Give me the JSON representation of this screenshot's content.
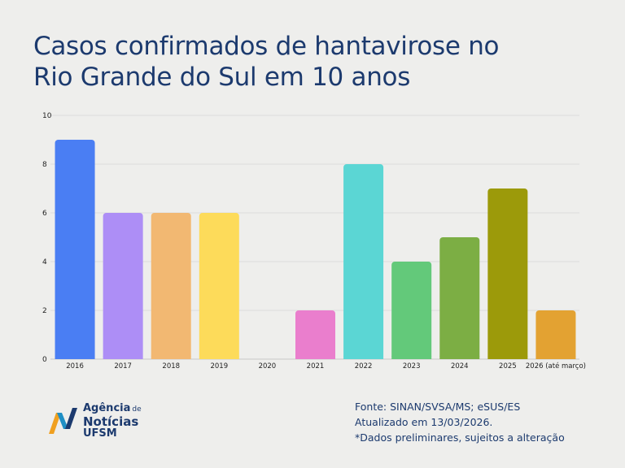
{
  "header": {
    "title_line1": "Casos confirmados de hantavirose no",
    "title_line2": "Rio Grande do Sul em 10 anos"
  },
  "chart_data": {
    "type": "bar",
    "title": "Casos confirmados de hantavirose no Rio Grande do Sul em 10 anos",
    "categories": [
      "2016",
      "2017",
      "2018",
      "2019",
      "2020",
      "2021",
      "2022",
      "2023",
      "2024",
      "2025",
      "2026 (até março)"
    ],
    "values": [
      9,
      6,
      6,
      6,
      0,
      2,
      8,
      4,
      5,
      7,
      2
    ],
    "colors": [
      "#4a7ef3",
      "#ad8ef6",
      "#f2b872",
      "#fddb5a",
      "#cccccc",
      "#ea7ecd",
      "#5bd6d4",
      "#63c97a",
      "#7cae44",
      "#9c9a0a",
      "#e3a232"
    ],
    "ylim": [
      0,
      10
    ],
    "yticks": [
      0,
      2,
      4,
      6,
      8,
      10
    ],
    "grid": true,
    "xlabel": "",
    "ylabel": ""
  },
  "footer": {
    "logo_line1": "Agência",
    "logo_line1_small": "de",
    "logo_line2": "Notícias",
    "logo_line3": "UFSM",
    "source_line1": "Fonte: SINAN/SVSA/MS; eSUS/ES",
    "source_line2": "Atualizado em 13/03/2026.",
    "source_line3": "*Dados preliminares, sujeitos a alteração"
  },
  "colors": {
    "background": "#eeeeec",
    "title": "#1c3a6e",
    "logo_blue": "#1c3a6e",
    "logo_orange": "#f0a020",
    "logo_teal": "#1f8fc4"
  },
  "icons": {
    "logo": "agencia-noticias-ufsm-logo-icon"
  }
}
